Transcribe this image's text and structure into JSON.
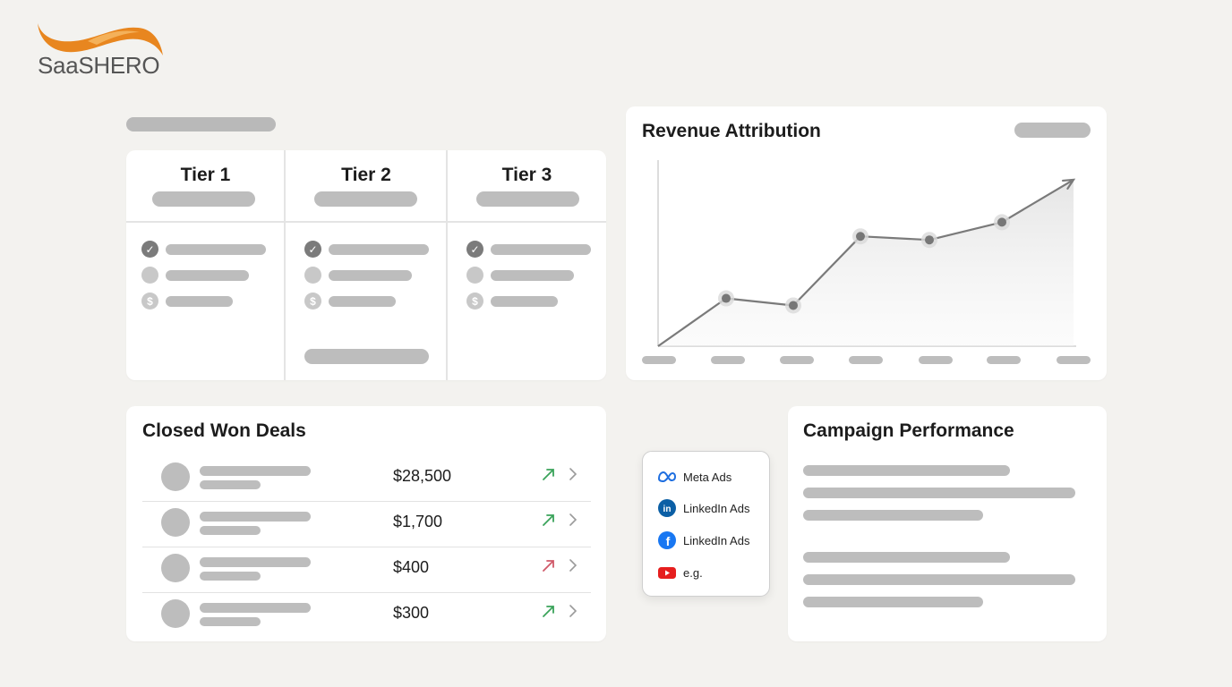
{
  "logo": {
    "part1": "SaaS",
    "part2": "HERO"
  },
  "tiers": [
    {
      "title": "Tier 1"
    },
    {
      "title": "Tier 2"
    },
    {
      "title": "Tier 3"
    }
  ],
  "revenue": {
    "title": "Revenue Attribution",
    "chart_data": {
      "type": "line",
      "title": "Revenue Attribution",
      "x": [
        0,
        1,
        2,
        3,
        4,
        5,
        6
      ],
      "values": [
        0,
        27,
        23,
        62,
        60,
        70,
        94
      ],
      "ylim": [
        0,
        100
      ],
      "grid": false,
      "trend_arrow": true,
      "area_fill": true,
      "line_color": "#7a7a7a"
    }
  },
  "deals": {
    "title": "Closed Won Deals",
    "rows": [
      {
        "amount": "$28,500",
        "trend": "up",
        "trend_color": "#3aa35a"
      },
      {
        "amount": "$1,700",
        "trend": "up",
        "trend_color": "#3aa35a"
      },
      {
        "amount": "$400",
        "trend": "up",
        "trend_color": "#d05a6a"
      },
      {
        "amount": "$300",
        "trend": "up",
        "trend_color": "#3aa35a"
      }
    ]
  },
  "channels": [
    {
      "icon": "meta-icon",
      "label": "Meta Ads"
    },
    {
      "icon": "linkedin-icon",
      "label": "LinkedIn Ads"
    },
    {
      "icon": "facebook-icon",
      "label": "LinkedIn Ads"
    },
    {
      "icon": "youtube-icon",
      "label": "e.g."
    }
  ],
  "campaign": {
    "title": "Campaign Performance"
  },
  "colors": {
    "logo_orange": "#e8861f",
    "placeholder": "#bdbdbd",
    "up_green": "#3aa35a",
    "down_red": "#d05a6a"
  }
}
